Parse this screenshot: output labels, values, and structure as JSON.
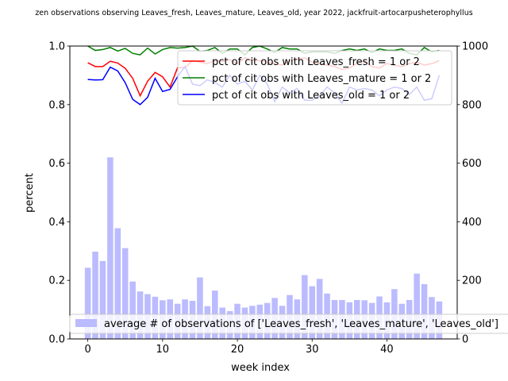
{
  "chart_data": {
    "type": "bar+line",
    "title": "zen observations observing Leaves_fresh, Leaves_mature, Leaves_old, year 2022, jackfruit-artocarpusheterophyllus",
    "xlabel": "week index",
    "ylabel_left": "percent",
    "ylabel_right": "",
    "xlim": [
      -2.4,
      49.4
    ],
    "ylim_left": [
      0,
      1.0
    ],
    "ylim_right": [
      0,
      1000
    ],
    "x_ticks": [
      0,
      10,
      20,
      30,
      40
    ],
    "y_left_ticks": [
      "0.0",
      "0.2",
      "0.4",
      "0.6",
      "0.8",
      "1.0"
    ],
    "y_right_ticks": [
      "0",
      "200",
      "400",
      "600",
      "800",
      "1000"
    ],
    "legend_top_position": "upper-right",
    "legend_bottom_position": "lower-right",
    "grid": false,
    "bars": {
      "name": "average # of observations of ['Leaves_fresh', 'Leaves_mature', 'Leaves_old']",
      "color": "#bbbbff",
      "x": [
        0,
        1,
        2,
        3,
        4,
        5,
        6,
        7,
        8,
        9,
        10,
        11,
        12,
        13,
        14,
        15,
        16,
        17,
        18,
        19,
        20,
        21,
        22,
        23,
        24,
        25,
        26,
        27,
        28,
        29,
        30,
        31,
        32,
        33,
        34,
        35,
        36,
        37,
        38,
        39,
        40,
        41,
        42,
        43,
        44,
        45,
        46,
        47
      ],
      "values": [
        243,
        298,
        266,
        620,
        378,
        310,
        196,
        162,
        153,
        144,
        132,
        135,
        120,
        135,
        130,
        210,
        112,
        165,
        107,
        95,
        120,
        107,
        113,
        117,
        123,
        140,
        113,
        150,
        135,
        218,
        180,
        205,
        155,
        133,
        133,
        125,
        133,
        132,
        123,
        145,
        125,
        170,
        120,
        133,
        223,
        187,
        143,
        128
      ]
    },
    "series": [
      {
        "name": "pct of cit obs with Leaves_fresh = 1 or 2",
        "color": "#ff0000",
        "x": [
          0,
          1,
          2,
          3,
          4,
          5,
          6,
          7,
          8,
          9,
          10,
          11,
          12,
          13,
          14,
          15,
          16,
          17,
          18,
          19,
          20,
          21,
          22,
          23,
          24,
          25,
          26,
          27,
          28,
          29,
          30,
          31,
          32,
          33,
          34,
          35,
          36,
          37,
          38,
          39,
          40,
          41,
          42,
          43,
          44,
          45,
          46,
          47
        ],
        "values": [
          0.943,
          0.93,
          0.93,
          0.948,
          0.942,
          0.924,
          0.89,
          0.83,
          0.88,
          0.91,
          0.895,
          0.86,
          0.926,
          0.926,
          0.95,
          0.945,
          0.94,
          0.95,
          0.948,
          0.953,
          0.94,
          0.96,
          0.95,
          0.95,
          0.945,
          0.94,
          0.935,
          0.95,
          0.955,
          0.96,
          0.945,
          0.94,
          0.935,
          0.93,
          0.92,
          0.925,
          0.94,
          0.95,
          0.93,
          0.925,
          0.94,
          0.935,
          0.93,
          0.94,
          0.945,
          0.935,
          0.94,
          0.95
        ]
      },
      {
        "name": "pct of cit obs with Leaves_mature = 1 or 2",
        "color": "#008000",
        "x": [
          0,
          1,
          2,
          3,
          4,
          5,
          6,
          7,
          8,
          9,
          10,
          11,
          12,
          13,
          14,
          15,
          16,
          17,
          18,
          19,
          20,
          21,
          22,
          23,
          24,
          25,
          26,
          27,
          28,
          29,
          30,
          31,
          32,
          33,
          34,
          35,
          36,
          37,
          38,
          39,
          40,
          41,
          42,
          43,
          44,
          45,
          46,
          47
        ],
        "values": [
          1.0,
          0.985,
          0.988,
          0.995,
          0.983,
          0.992,
          0.975,
          0.97,
          0.993,
          0.973,
          0.988,
          0.995,
          0.993,
          0.995,
          1.0,
          0.982,
          0.985,
          0.995,
          0.975,
          0.99,
          0.99,
          0.97,
          0.995,
          1.0,
          0.99,
          0.978,
          0.995,
          0.99,
          0.99,
          0.975,
          0.98,
          0.98,
          0.98,
          0.975,
          0.985,
          0.99,
          0.985,
          0.99,
          0.978,
          0.99,
          0.985,
          0.985,
          0.99,
          0.975,
          0.97,
          0.995,
          0.98,
          0.985
        ]
      },
      {
        "name": "pct of cit obs with Leaves_old = 1 or 2",
        "color": "#0000ff",
        "x": [
          0,
          1,
          2,
          3,
          4,
          5,
          6,
          7,
          8,
          9,
          10,
          11,
          12,
          13,
          14,
          15,
          16,
          17,
          18,
          19,
          20,
          21,
          22,
          23,
          24,
          25,
          26,
          27,
          28,
          29,
          30,
          31,
          32,
          33,
          34,
          35,
          36,
          37,
          38,
          39,
          40,
          41,
          42,
          43,
          44,
          45,
          46,
          47
        ],
        "values": [
          0.886,
          0.884,
          0.885,
          0.928,
          0.915,
          0.875,
          0.818,
          0.8,
          0.825,
          0.89,
          0.845,
          0.852,
          0.895,
          0.93,
          0.87,
          0.865,
          0.885,
          0.875,
          0.86,
          0.9,
          0.87,
          0.88,
          0.85,
          0.9,
          0.87,
          0.81,
          0.86,
          0.84,
          0.855,
          0.815,
          0.815,
          0.83,
          0.86,
          0.84,
          0.805,
          0.86,
          0.85,
          0.855,
          0.85,
          0.83,
          0.85,
          0.86,
          0.855,
          0.835,
          0.86,
          0.815,
          0.82,
          0.9
        ]
      }
    ]
  }
}
